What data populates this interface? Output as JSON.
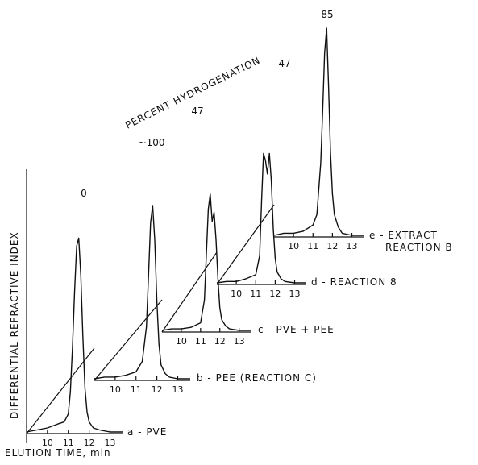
{
  "chart_data": {
    "type": "line",
    "title": "",
    "ylabel": "DIFFERENTIAL REFRACTIVE INDEX",
    "xlabel": "ELUTION TIME, min",
    "overlay_label": "PERCENT HYDROGENATION",
    "xlim": [
      9,
      13.6
    ],
    "ticks": [
      10,
      11,
      12,
      13
    ],
    "series": [
      {
        "name": "a - PVE",
        "percent": "0",
        "x": [
          9.0,
          9.5,
          10.0,
          10.5,
          10.8,
          11.0,
          11.1,
          11.2,
          11.3,
          11.4,
          11.5,
          11.6,
          11.7,
          11.8,
          11.9,
          12.0,
          12.2,
          12.5,
          13.0,
          13.6
        ],
        "y": [
          0.0,
          0.01,
          0.02,
          0.04,
          0.05,
          0.09,
          0.2,
          0.42,
          0.7,
          0.93,
          0.97,
          0.78,
          0.48,
          0.22,
          0.1,
          0.05,
          0.02,
          0.01,
          0.0,
          0.0
        ]
      },
      {
        "name": "b - PEE (REACTION C)",
        "percent": "~100",
        "x": [
          9.0,
          9.5,
          10.0,
          10.5,
          11.0,
          11.3,
          11.5,
          11.6,
          11.7,
          11.8,
          11.9,
          12.0,
          12.1,
          12.2,
          12.4,
          12.6,
          13.0,
          13.6
        ],
        "y": [
          0.0,
          0.01,
          0.01,
          0.02,
          0.04,
          0.1,
          0.3,
          0.6,
          0.9,
          1.0,
          0.8,
          0.45,
          0.2,
          0.08,
          0.03,
          0.01,
          0.0,
          0.0
        ]
      },
      {
        "name": "c - PVE + PEE",
        "percent": "47",
        "x": [
          9.0,
          9.5,
          10.0,
          10.5,
          11.0,
          11.2,
          11.3,
          11.4,
          11.5,
          11.6,
          11.7,
          11.8,
          11.9,
          12.0,
          12.1,
          12.3,
          12.5,
          13.0,
          13.6
        ],
        "y": [
          0.0,
          0.01,
          0.01,
          0.02,
          0.05,
          0.2,
          0.5,
          0.8,
          0.9,
          0.72,
          0.78,
          0.6,
          0.35,
          0.15,
          0.07,
          0.03,
          0.01,
          0.0,
          0.0
        ]
      },
      {
        "name": "d - REACTION 8",
        "percent": "47",
        "x": [
          9.0,
          9.5,
          10.0,
          10.5,
          11.0,
          11.2,
          11.3,
          11.4,
          11.5,
          11.6,
          11.7,
          11.8,
          11.9,
          12.0,
          12.1,
          12.3,
          12.5,
          13.0,
          13.6
        ],
        "y": [
          0.0,
          0.01,
          0.01,
          0.03,
          0.06,
          0.2,
          0.6,
          0.95,
          0.9,
          0.8,
          0.95,
          0.75,
          0.4,
          0.18,
          0.08,
          0.03,
          0.01,
          0.0,
          0.0
        ]
      },
      {
        "name": "e - EXTRACT REACTION B",
        "percent": "85",
        "x": [
          9.0,
          9.5,
          10.0,
          10.5,
          11.0,
          11.2,
          11.4,
          11.5,
          11.6,
          11.7,
          11.8,
          11.9,
          12.0,
          12.1,
          12.3,
          12.5,
          13.0,
          13.6
        ],
        "y": [
          0.0,
          0.01,
          0.01,
          0.02,
          0.05,
          0.1,
          0.35,
          0.6,
          0.88,
          1.0,
          0.72,
          0.4,
          0.2,
          0.1,
          0.04,
          0.01,
          0.0,
          0.0
        ]
      }
    ],
    "grid": false,
    "legend": "none"
  }
}
